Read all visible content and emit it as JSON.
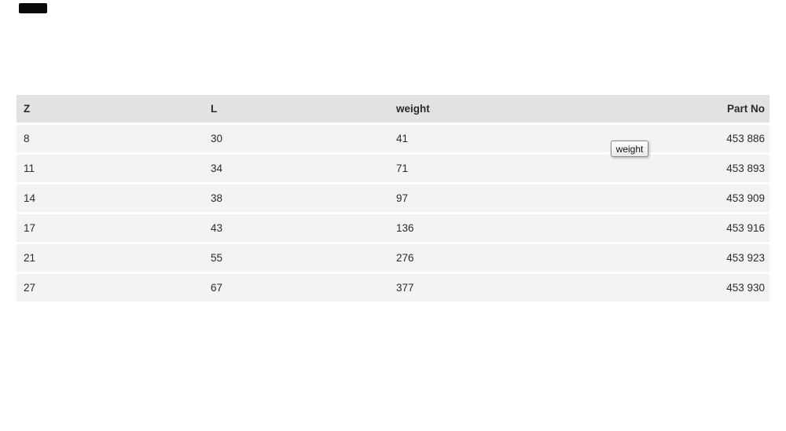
{
  "table": {
    "columns": [
      "Z",
      "L",
      "weight",
      "Part No"
    ],
    "rows": [
      [
        "8",
        "30",
        "41",
        "453 886"
      ],
      [
        "11",
        "34",
        "71",
        "453 893"
      ],
      [
        "14",
        "38",
        "97",
        "453 909"
      ],
      [
        "17",
        "43",
        "136",
        "453 916"
      ],
      [
        "21",
        "55",
        "276",
        "453 923"
      ],
      [
        "27",
        "67",
        "377",
        "453 930"
      ]
    ]
  },
  "tooltip": {
    "text": "weight"
  },
  "colors": {
    "header_bg": "#e2e2e1",
    "row_bg": "#f2f4f4",
    "text": "#2b2b2b",
    "tooltip_border": "#8c8c8c",
    "page_bg": "#ffffff"
  }
}
